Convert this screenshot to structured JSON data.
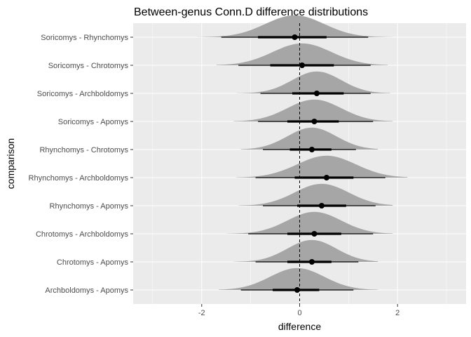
{
  "chart_data": {
    "type": "halfeye",
    "title": "Between-genus Conn.D difference distributions",
    "xlabel": "difference",
    "ylabel": "comparison",
    "xlim": [
      -3.4,
      3.4
    ],
    "x_ticks": [
      -2,
      0,
      2
    ],
    "x_tick_labels": [
      "-2",
      "0",
      "2"
    ],
    "reference_line": 0,
    "grid": true,
    "series": [
      {
        "name": "Soricomys - Rhynchomys",
        "median": -0.1,
        "sd": 0.6,
        "inner": [
          -0.85,
          0.55
        ],
        "outer": [
          -1.6,
          1.4
        ],
        "range": [
          -2.1,
          1.9
        ]
      },
      {
        "name": "Soricomys - Chrotomys",
        "median": 0.05,
        "sd": 0.6,
        "inner": [
          -0.6,
          0.7
        ],
        "outer": [
          -1.25,
          1.45
        ],
        "range": [
          -1.7,
          1.8
        ]
      },
      {
        "name": "Soricomys - Archboldomys",
        "median": 0.35,
        "sd": 0.5,
        "inner": [
          -0.15,
          0.9
        ],
        "outer": [
          -0.8,
          1.45
        ],
        "range": [
          -1.3,
          1.85
        ]
      },
      {
        "name": "Soricomys - Apomys",
        "median": 0.3,
        "sd": 0.55,
        "inner": [
          -0.25,
          0.8
        ],
        "outer": [
          -0.85,
          1.5
        ],
        "range": [
          -1.35,
          1.9
        ]
      },
      {
        "name": "Rhynchomys - Chrotomys",
        "median": 0.25,
        "sd": 0.5,
        "inner": [
          -0.2,
          0.65
        ],
        "outer": [
          -0.75,
          1.15
        ],
        "range": [
          -1.2,
          1.6
        ]
      },
      {
        "name": "Rhynchomys - Archboldomys",
        "median": 0.55,
        "sd": 0.6,
        "inner": [
          -0.1,
          1.1
        ],
        "outer": [
          -0.9,
          1.75
        ],
        "range": [
          -1.3,
          2.2
        ]
      },
      {
        "name": "Rhynchomys - Apomys",
        "median": 0.45,
        "sd": 0.55,
        "inner": [
          -0.05,
          0.95
        ],
        "outer": [
          -0.75,
          1.55
        ],
        "range": [
          -1.25,
          1.9
        ]
      },
      {
        "name": "Chrotomys - Archboldomys",
        "median": 0.3,
        "sd": 0.55,
        "inner": [
          -0.25,
          0.85
        ],
        "outer": [
          -1.05,
          1.5
        ],
        "range": [
          -1.5,
          1.9
        ]
      },
      {
        "name": "Chrotomys - Apomys",
        "median": 0.25,
        "sd": 0.5,
        "inner": [
          -0.25,
          0.65
        ],
        "outer": [
          -0.9,
          1.2
        ],
        "range": [
          -1.35,
          1.6
        ]
      },
      {
        "name": "Archboldomys - Apomys",
        "median": -0.05,
        "sd": 0.55,
        "inner": [
          -0.55,
          0.4
        ],
        "outer": [
          -1.2,
          1.1
        ],
        "range": [
          -1.65,
          1.6
        ]
      }
    ]
  },
  "colors": {
    "panel_background": "#ebebeb",
    "grid_major": "#ffffff",
    "density_fill": "#a6a6a6",
    "interval": "#000000",
    "tick_text": "#4d4d4d"
  }
}
